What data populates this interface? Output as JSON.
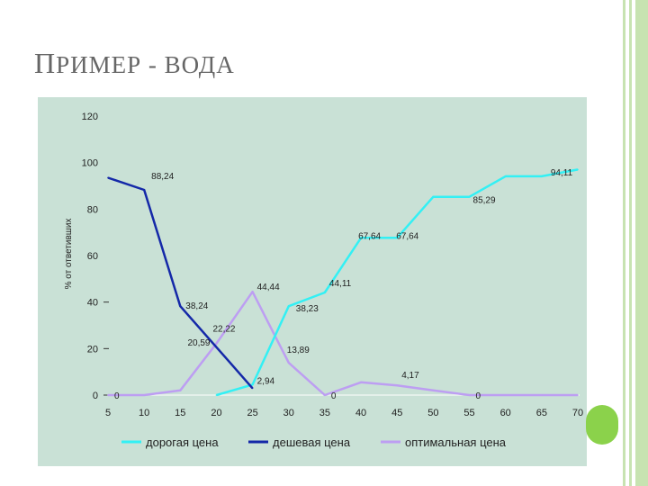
{
  "slide": {
    "title": "Пример - вода",
    "title_first": "П",
    "title_rest": "РИМЕР - ВОДА"
  },
  "chart_data": {
    "type": "line",
    "ylabel": "% от ответивших",
    "xlabel": "",
    "xlim": [
      5,
      70
    ],
    "ylim": [
      0,
      120
    ],
    "x_ticks": [
      5,
      10,
      15,
      20,
      25,
      30,
      35,
      40,
      45,
      50,
      55,
      60,
      65,
      70
    ],
    "y_ticks": [
      0,
      20,
      40,
      60,
      80,
      100,
      120
    ],
    "legend_position": "bottom",
    "series": [
      {
        "name": "дорогая цена",
        "color": "#33f0f4",
        "points": [
          [
            20,
            0
          ],
          [
            25,
            4.5
          ],
          [
            30,
            38.23
          ],
          [
            35,
            44.11
          ],
          [
            40,
            67.64
          ],
          [
            45,
            67.64
          ],
          [
            50,
            85.29
          ],
          [
            55,
            85.29
          ],
          [
            60,
            94.11
          ],
          [
            65,
            94.11
          ],
          [
            70,
            97
          ]
        ]
      },
      {
        "name": "дешевая цена",
        "color": "#1428a8",
        "points": [
          [
            5,
            93.5
          ],
          [
            10,
            88.24
          ],
          [
            15,
            38.24
          ],
          [
            20,
            20.59
          ],
          [
            25,
            2.94
          ]
        ]
      },
      {
        "name": "оптимальная цена",
        "color": "#bd9ef2",
        "points": [
          [
            5,
            0
          ],
          [
            10,
            0
          ],
          [
            15,
            2
          ],
          [
            20,
            22.22
          ],
          [
            25,
            44.44
          ],
          [
            30,
            13.89
          ],
          [
            35,
            0
          ],
          [
            40,
            5.5
          ],
          [
            45,
            4.17
          ],
          [
            50,
            2
          ],
          [
            55,
            0
          ],
          [
            60,
            0
          ],
          [
            65,
            0
          ],
          [
            70,
            0
          ]
        ]
      }
    ],
    "data_labels": [
      {
        "text": "88,24",
        "x": 10,
        "y": 88.24
      },
      {
        "text": "38,24",
        "x": 15,
        "y": 38.24
      },
      {
        "text": "20,59",
        "x": 20,
        "y": 20.59
      },
      {
        "text": "2,94",
        "x": 25,
        "y": 2.94
      },
      {
        "text": "22,22",
        "x": 20,
        "y": 22.22
      },
      {
        "text": "44,44",
        "x": 25,
        "y": 44.44
      },
      {
        "text": "13,89",
        "x": 30,
        "y": 13.89
      },
      {
        "text": "38,23",
        "x": 30,
        "y": 38.23
      },
      {
        "text": "44,11",
        "x": 35,
        "y": 44.11
      },
      {
        "text": "67,64",
        "x": 40,
        "y": 67.64
      },
      {
        "text": "67,64",
        "x": 45,
        "y": 67.64
      },
      {
        "text": "85,29",
        "x": 55,
        "y": 85.29
      },
      {
        "text": "94,11",
        "x": 65,
        "y": 94.11
      },
      {
        "text": "4,17",
        "x": 45,
        "y": 4.17
      },
      {
        "text": "0",
        "x": 5,
        "y": 0
      },
      {
        "text": "0",
        "x": 35,
        "y": 0
      },
      {
        "text": "0",
        "x": 55,
        "y": 0
      }
    ]
  }
}
